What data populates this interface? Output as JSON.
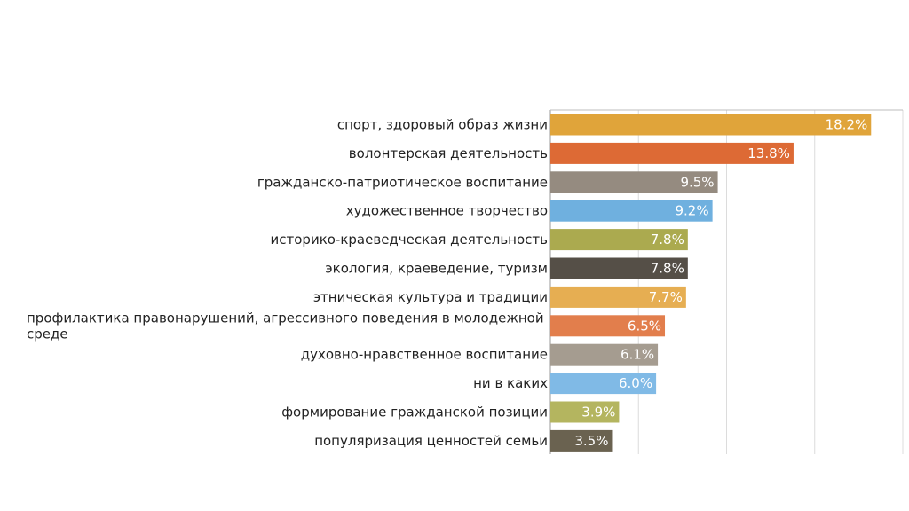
{
  "chart_data": {
    "type": "bar",
    "orientation": "horizontal",
    "title": "",
    "xlabel": "",
    "ylabel": "",
    "xlim": [
      0,
      20
    ],
    "grid": true,
    "legend": "none",
    "value_suffix": "%",
    "categories": [
      "спорт, здоровый образ жизни",
      "волонтерская деятельность",
      "гражданско-патриотическое воспитание",
      "художественное творчество",
      "историко-краеведческая деятельность",
      "экология, краеведение, туризм",
      "этническая культура и традиции",
      "профилактика правонарушений, агрессивного поведения в молодежной среде",
      "духовно-нравственное воспитание",
      "ни в каких",
      "формирование гражданской позиции",
      "популяризация ценностей семьи"
    ],
    "values": [
      18.2,
      13.8,
      9.5,
      9.2,
      7.8,
      7.8,
      7.7,
      6.5,
      6.1,
      6.0,
      3.9,
      3.5
    ],
    "value_labels": [
      "18.2%",
      "13.8%",
      "9.5%",
      "9.2%",
      "7.8%",
      "7.8%",
      "7.7%",
      "6.5%",
      "6.1%",
      "6.0%",
      "3.9%",
      "3.5%"
    ],
    "colors": [
      "#E0A43A",
      "#DD6A35",
      "#958B80",
      "#6FB0DF",
      "#ABAA4F",
      "#554F47",
      "#E6AE52",
      "#E27E4C",
      "#A59C90",
      "#80BAE6",
      "#B4B55F",
      "#6A6250"
    ]
  }
}
